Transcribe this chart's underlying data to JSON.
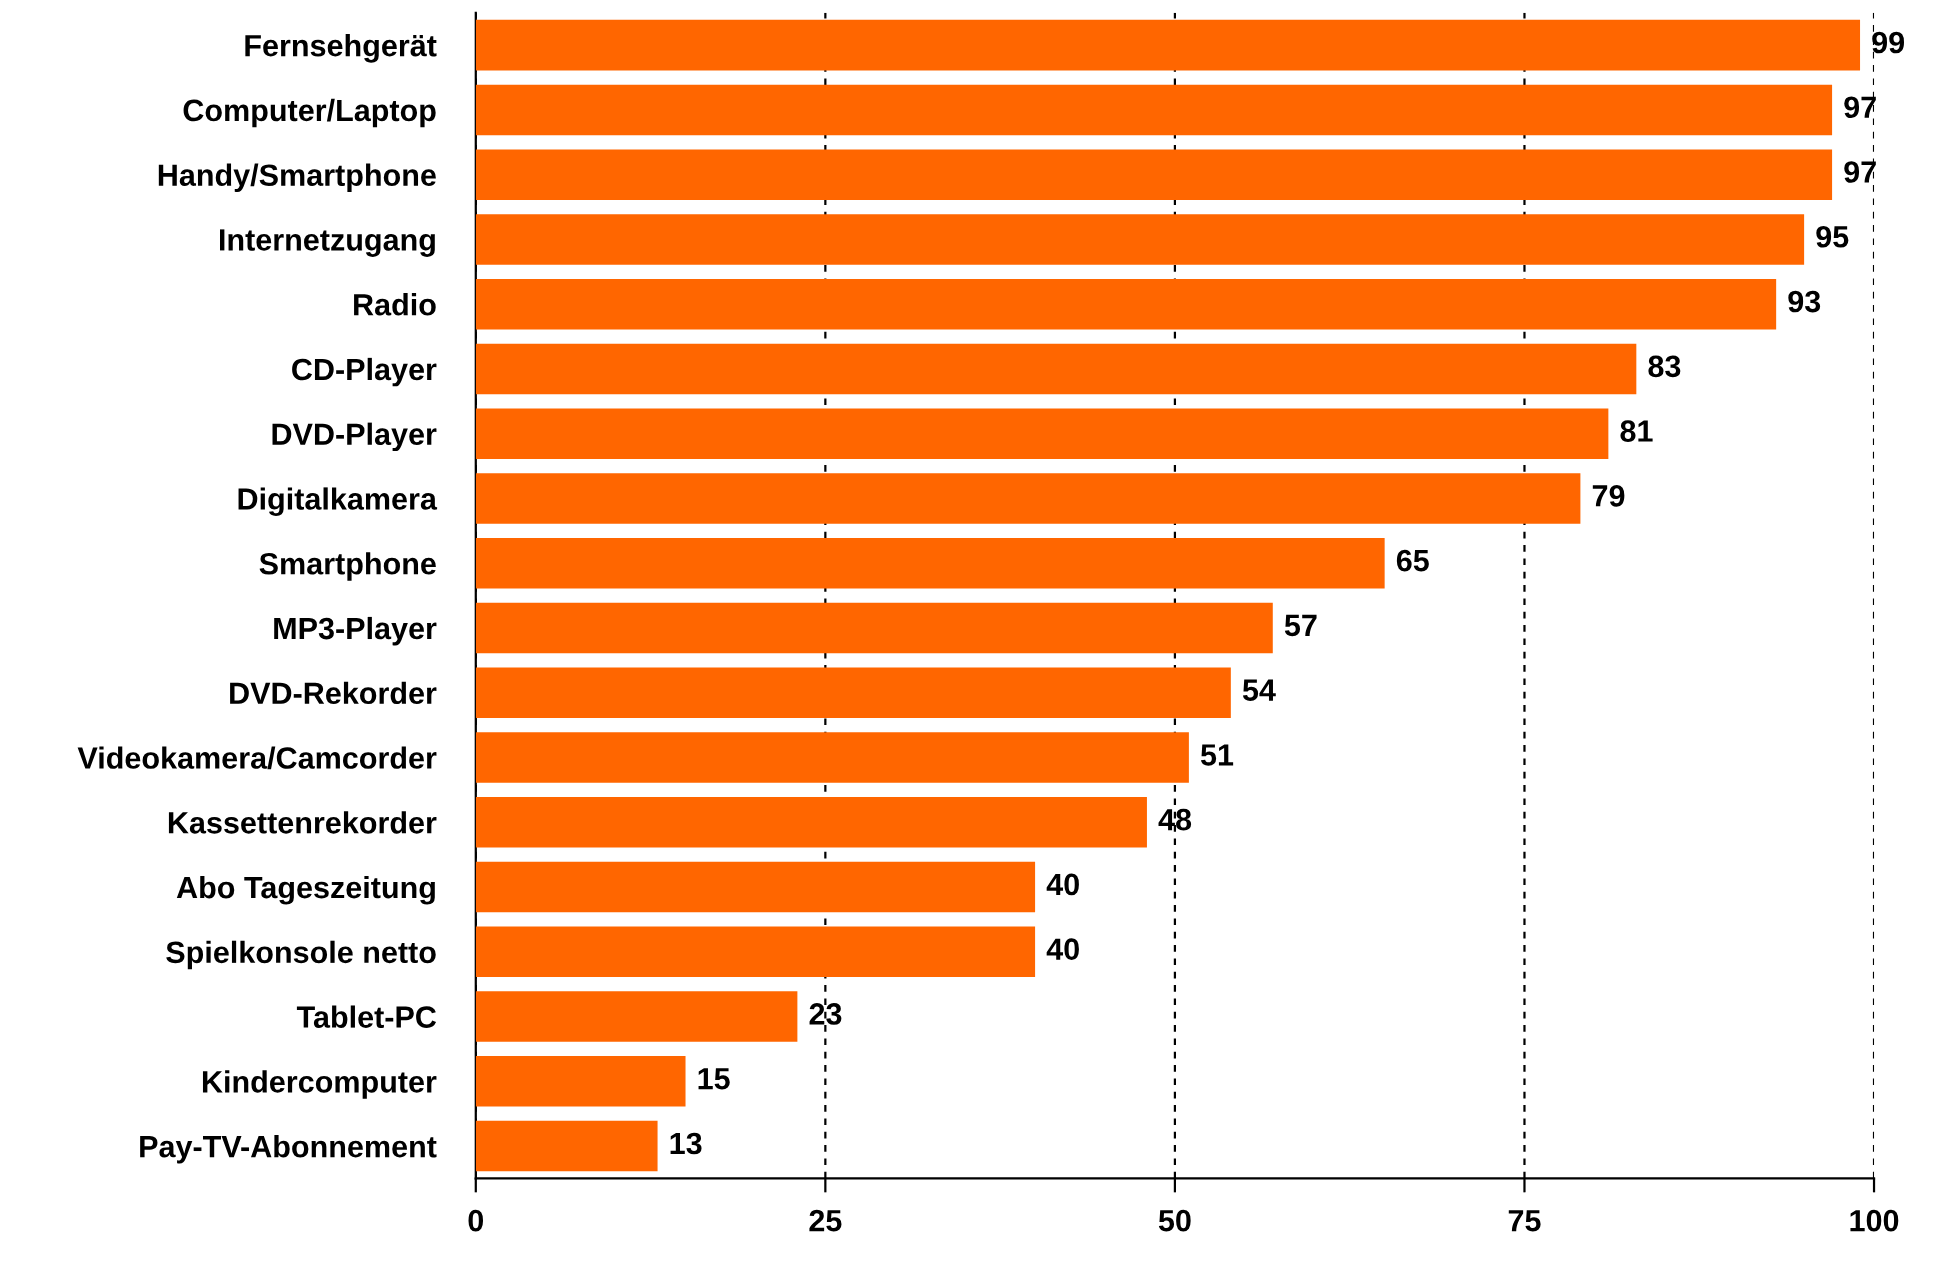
{
  "chart_data": {
    "type": "bar",
    "orientation": "horizontal",
    "categories": [
      "Fernsehgerät",
      "Computer/Laptop",
      "Handy/Smartphone",
      "Internetzugang",
      "Radio",
      "CD-Player",
      "DVD-Player",
      "Digitalkamera",
      "Smartphone",
      "MP3-Player",
      "DVD-Rekorder",
      "Videokamera/Camcorder",
      "Kassettenrekorder",
      "Abo Tageszeitung",
      "Spielkonsole netto",
      "Tablet-PC",
      "Kindercomputer",
      "Pay-TV-Abonnement"
    ],
    "values": [
      99,
      97,
      97,
      95,
      93,
      83,
      81,
      79,
      65,
      57,
      54,
      51,
      48,
      40,
      40,
      23,
      15,
      13
    ],
    "color": "#ff6600",
    "xlim": [
      0,
      100
    ],
    "xticks": [
      0,
      25,
      50,
      75,
      100
    ],
    "grid": "x",
    "data_labels": true,
    "legend": false
  }
}
